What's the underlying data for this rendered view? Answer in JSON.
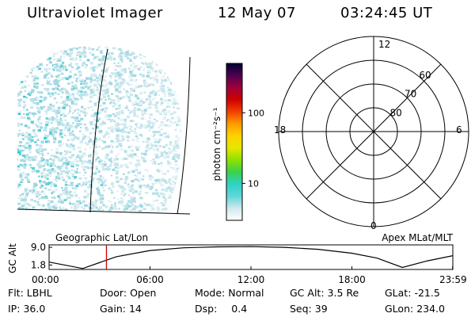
{
  "header": {
    "instrument": "Ultraviolet Imager",
    "date": "12 May 07",
    "time": "03:24:45 UT"
  },
  "colorbar": {
    "unit_label": "photon cm⁻²s⁻¹",
    "ticks": [
      {
        "value": 100,
        "label": "100"
      },
      {
        "value": 10,
        "label": "10"
      }
    ],
    "log_scale": true,
    "range": [
      3,
      500
    ],
    "colors": [
      "#ffffff",
      "#cfe8ee",
      "#5fd7d7",
      "#2fd1c7",
      "#38d24a",
      "#8ee000",
      "#e6e600",
      "#ffd200",
      "#ff9a00",
      "#f04000",
      "#d00000",
      "#a0003a",
      "#500050",
      "#000033"
    ]
  },
  "polar_plot": {
    "labels": {
      "top": "12",
      "bottom": "0",
      "left": "18",
      "right": "6"
    },
    "latitude_rings": [
      {
        "label": "60",
        "lat": 60
      },
      {
        "label": "70",
        "lat": 70
      },
      {
        "label": "80",
        "lat": 80
      }
    ]
  },
  "timeline": {
    "y_axis_label": "GC Alt",
    "y_ticks": [
      {
        "value": 9.0,
        "label": "9.0"
      },
      {
        "value": 1.8,
        "label": "1.8"
      }
    ],
    "left_title": "Geographic Lat/Lon",
    "right_title": "Apex MLat/MLT",
    "x_ticks": [
      {
        "hours": 0,
        "label": "00:00"
      },
      {
        "hours": 6,
        "label": "06:00"
      },
      {
        "hours": 12,
        "label": "12:00"
      },
      {
        "hours": 18,
        "label": "18:00"
      },
      {
        "hours": 23.983,
        "label": "23:59"
      }
    ],
    "current_time_hours": 3.41,
    "cursor_color": "#cc0000"
  },
  "chart_data": {
    "type": "line",
    "title": "",
    "xlabel": "",
    "ylabel": "GC Alt",
    "x": [
      0,
      2,
      4,
      6,
      8,
      10,
      12,
      14,
      16,
      18,
      19.5,
      21,
      22.5,
      24
    ],
    "series": [
      {
        "values": [
          3.0,
          0.4,
          5.2,
          7.7,
          8.8,
          9.2,
          9.3,
          9.0,
          8.2,
          6.6,
          4.6,
          0.8,
          3.5,
          5.6
        ]
      }
    ],
    "ylim": [
      0,
      10
    ],
    "xlim": [
      0,
      24
    ]
  },
  "info": {
    "row1": [
      {
        "label": "Flt:",
        "value": "LBHL"
      },
      {
        "label": "Door:",
        "value": "Open"
      },
      {
        "label": "Mode:",
        "value": "Normal"
      },
      {
        "label": "GC Alt:",
        "value": "3.5 Re"
      },
      {
        "label": "GLat:",
        "value": "-21.5"
      }
    ],
    "row2": [
      {
        "label": "IP:",
        "value": "36.0"
      },
      {
        "label": "Gain:",
        "value": "14"
      },
      {
        "label": "Dsp:",
        "value": "0.4"
      },
      {
        "label": "Seq:",
        "value": "39"
      },
      {
        "label": "GLon:",
        "value": "234.0"
      }
    ]
  }
}
